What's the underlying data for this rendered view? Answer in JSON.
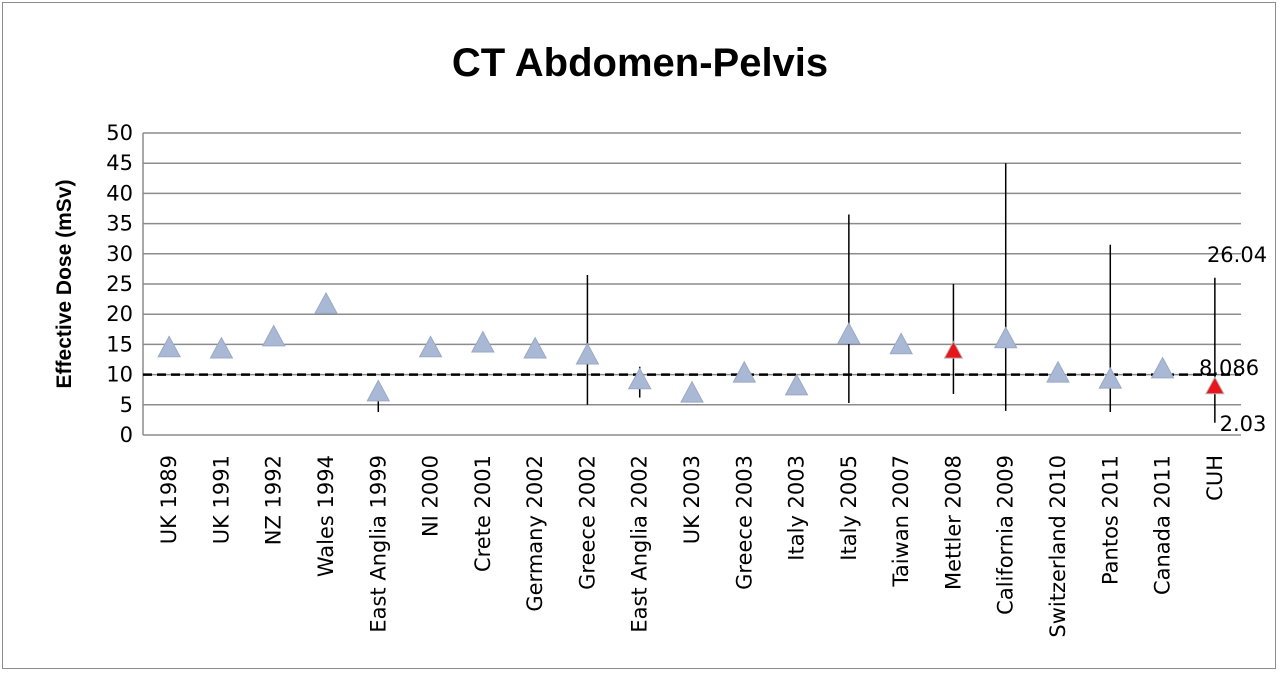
{
  "chart_data": {
    "type": "scatter",
    "title": "CT Abdomen-Pelvis",
    "ylabel": "Effective Dose (mSv)",
    "xlabel": "",
    "ylim": [
      0,
      50
    ],
    "yticks": [
      "0",
      "5",
      "10",
      "15",
      "20",
      "25",
      "30",
      "35",
      "40",
      "45",
      "50"
    ],
    "grid": true,
    "categories": [
      "UK  1989",
      "UK 1991",
      "NZ 1992",
      "Wales 1994",
      "East Anglia 1999",
      "NI 2000",
      "Crete 2001",
      "Germany 2002",
      "Greece 2002",
      "East Anglia 2002",
      "UK 2003",
      "Greece 2003",
      "Italy 2003",
      "Italy 2005",
      "Taiwan 2007",
      "Mettler 2008",
      "California 2009",
      "Switzerland 2010",
      "Pantos 2011",
      "Canada 2011",
      "CUH"
    ],
    "values": [
      14.5,
      14.3,
      16.3,
      21.7,
      7.2,
      14.5,
      15.3,
      14.3,
      13.3,
      9.2,
      7.0,
      10.3,
      8.2,
      16.7,
      15.0,
      14.0,
      16.0,
      10.3,
      9.3,
      11.0,
      8.086
    ],
    "error_low": [
      null,
      null,
      null,
      null,
      3.8,
      null,
      null,
      null,
      5.0,
      6.2,
      null,
      null,
      null,
      5.3,
      null,
      6.8,
      4.0,
      null,
      3.8,
      null,
      2.03
    ],
    "error_high": [
      null,
      null,
      null,
      null,
      null,
      null,
      null,
      null,
      26.5,
      11.3,
      null,
      null,
      null,
      36.5,
      null,
      25.0,
      45.0,
      null,
      31.5,
      null,
      26.04
    ],
    "highlight": [
      false,
      false,
      false,
      false,
      false,
      false,
      false,
      false,
      false,
      false,
      false,
      false,
      false,
      false,
      false,
      true,
      false,
      false,
      false,
      false,
      true
    ],
    "reference_line": 10,
    "annotations": [
      "26.04",
      "8.086",
      "2.03"
    ],
    "colors": {
      "marker": "#a9b8d4",
      "highlight": "#e8151b",
      "grid": "#8c8c8c",
      "error_bar": "#000000"
    }
  }
}
